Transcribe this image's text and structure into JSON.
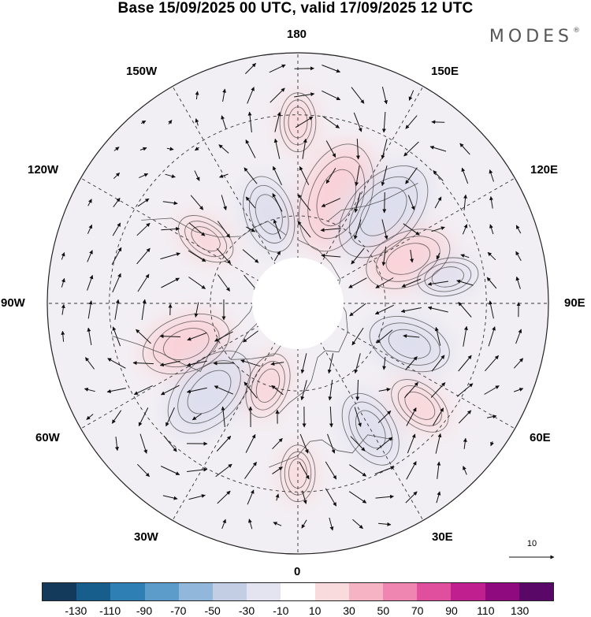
{
  "title": "Base 15/09/2025 00 UTC, valid 17/09/2025 12 UTC",
  "brand": "MODES",
  "brand_mark": "®",
  "longitude_labels": {
    "top": "180",
    "bottom": "0",
    "left": "90W",
    "right": "90E",
    "upper_left_1": "150W",
    "upper_left_2": "120W",
    "upper_right_1": "150E",
    "upper_right_2": "120E",
    "lower_left_1": "60W",
    "lower_left_2": "30W",
    "lower_right_1": "60E",
    "lower_right_2": "30E"
  },
  "reference_vector": {
    "value": "10"
  },
  "colorbar": {
    "colors": [
      "#13395b",
      "#175e8c",
      "#2e7fb4",
      "#5b9ccb",
      "#91b8da",
      "#c3cde3",
      "#e4e3f0",
      "#ffffff",
      "#fadbdd",
      "#f6b3c3",
      "#ef86b2",
      "#e04f9e",
      "#c01f8f",
      "#8e0a7e",
      "#5a0868"
    ],
    "tick_labels": [
      "-130",
      "-110",
      "-90",
      "-70",
      "-50",
      "-30",
      "-10",
      "10",
      "30",
      "50",
      "70",
      "90",
      "110",
      "130"
    ]
  },
  "anomaly_centers": [
    {
      "lon": 160,
      "lat": 52,
      "value": 140
    },
    {
      "lon": 137,
      "lat": 48,
      "value": -135
    },
    {
      "lon": 112,
      "lat": 50,
      "value": 90
    },
    {
      "lon": 100,
      "lat": 40,
      "value": -35
    },
    {
      "lon": 70,
      "lat": 50,
      "value": -80
    },
    {
      "lon": 30,
      "lat": 42,
      "value": -70
    },
    {
      "lon": 50,
      "lat": 38,
      "value": 45
    },
    {
      "lon": 180,
      "lat": 32,
      "value": 30
    },
    {
      "lon": -162,
      "lat": 58,
      "value": -70
    },
    {
      "lon": -125,
      "lat": 52,
      "value": 35
    },
    {
      "lon": -70,
      "lat": 50,
      "value": 95
    },
    {
      "lon": -45,
      "lat": 48,
      "value": -115
    },
    {
      "lon": -20,
      "lat": 60,
      "value": 45
    },
    {
      "lon": 0,
      "lat": 35,
      "value": 25
    }
  ]
}
